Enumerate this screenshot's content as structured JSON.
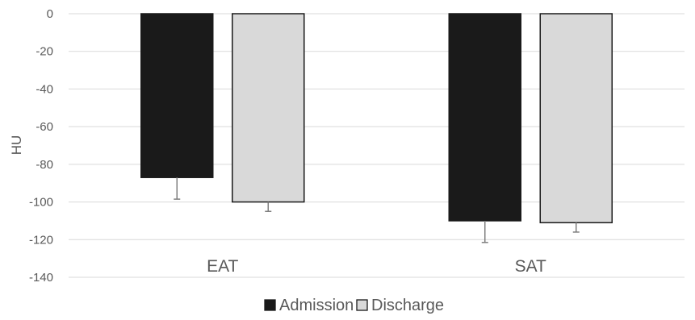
{
  "chart_data": {
    "type": "bar",
    "title": "",
    "xlabel": "",
    "ylabel": "HU",
    "ylim": [
      -140,
      0
    ],
    "yticks": [
      0,
      -20,
      -40,
      -60,
      -80,
      -100,
      -120,
      -140
    ],
    "grid": true,
    "legend_position": "bottom",
    "categories": [
      "EAT",
      "SAT"
    ],
    "series": [
      {
        "name": "Admission",
        "color": "#1a1a1a",
        "values": [
          -87,
          -110
        ],
        "error": [
          11.5,
          11.5
        ]
      },
      {
        "name": "Discharge",
        "color": "#d9d9d9",
        "values": [
          -100,
          -111
        ],
        "error": [
          5,
          5
        ]
      }
    ]
  }
}
